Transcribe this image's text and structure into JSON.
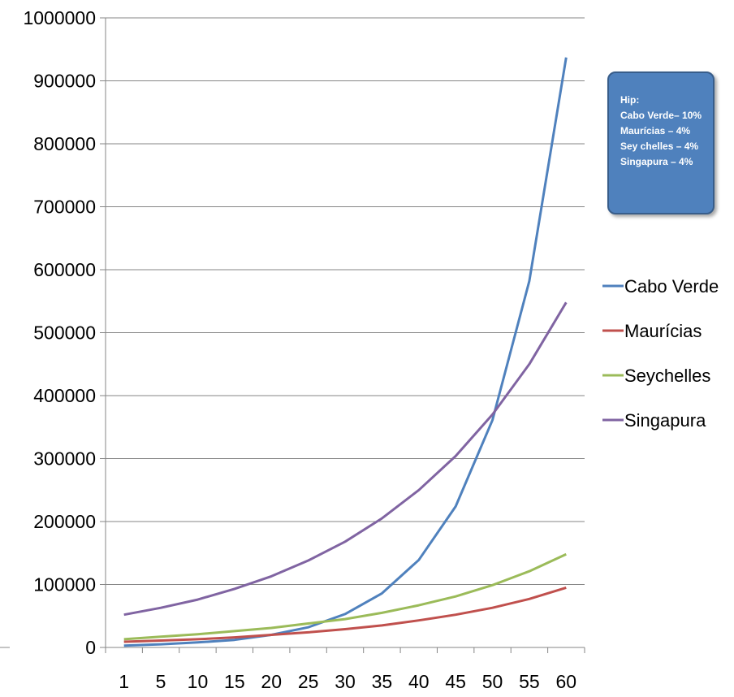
{
  "chart_data": {
    "type": "line",
    "title": "",
    "xlabel": "",
    "ylabel": "",
    "categories": [
      "1",
      "5",
      "10",
      "15",
      "20",
      "25",
      "30",
      "35",
      "40",
      "45",
      "50",
      "55",
      "60"
    ],
    "ylim": [
      0,
      1000000
    ],
    "yticks": [
      "0",
      "100000",
      "200000",
      "300000",
      "400000",
      "500000",
      "600000",
      "700000",
      "800000",
      "900000",
      "1000000"
    ],
    "grid": true,
    "legend_position": "right",
    "series": [
      {
        "name": "Cabo Verde",
        "color": "#4f81bd",
        "values": [
          3000,
          5000,
          8000,
          12000,
          20000,
          32000,
          53000,
          86000,
          139000,
          224000,
          361000,
          582000,
          937000
        ]
      },
      {
        "name": "Maurícias",
        "color": "#c0504d",
        "values": [
          9000,
          11000,
          13000,
          16000,
          20000,
          24000,
          29000,
          35000,
          43000,
          52000,
          63000,
          77000,
          95000
        ]
      },
      {
        "name": "Seychelles",
        "color": "#9bbb59",
        "values": [
          13000,
          17000,
          21000,
          26000,
          31000,
          38000,
          45000,
          55000,
          67000,
          81000,
          99000,
          121000,
          148000
        ]
      },
      {
        "name": "Singapura",
        "color": "#8064a2",
        "values": [
          52000,
          63000,
          76000,
          93000,
          113000,
          138000,
          168000,
          205000,
          250000,
          304000,
          370000,
          450000,
          548000
        ]
      }
    ]
  },
  "annotation": {
    "lines": [
      "Hip:",
      "Cabo Verde– 10%",
      "Maurícias – 4%",
      "Sey chelles – 4%",
      "Singapura  – 4%"
    ]
  }
}
